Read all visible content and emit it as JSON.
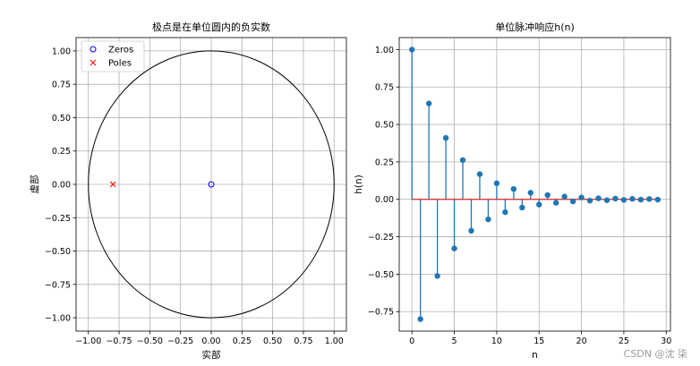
{
  "chart_data": [
    {
      "type": "scatter",
      "title": "极点是在单位圆内的负实数",
      "xlabel": "实部",
      "ylabel": "虚部",
      "xlim": [
        -1.1,
        1.1
      ],
      "ylim": [
        -1.1,
        1.1
      ],
      "xticks": [
        "−1.00",
        "−0.75",
        "−0.50",
        "−0.25",
        "0.00",
        "0.25",
        "0.50",
        "0.75",
        "1.00"
      ],
      "yticks": [
        "−1.00",
        "−0.75",
        "−0.50",
        "−0.25",
        "0.00",
        "0.25",
        "0.50",
        "0.75",
        "1.00"
      ],
      "grid": true,
      "legend_position": "top-left",
      "unit_circle": true,
      "series": [
        {
          "name": "Zeros",
          "marker": "circle",
          "color": "#0000ff",
          "points": [
            [
              0,
              0
            ]
          ]
        },
        {
          "name": "Poles",
          "marker": "x",
          "color": "#ff0000",
          "points": [
            [
              -0.8,
              0
            ]
          ]
        }
      ]
    },
    {
      "type": "stem",
      "title": "单位脉冲响应h(n)",
      "xlabel": "n",
      "ylabel": "h(n)",
      "xlim": [
        -1.5,
        30.5
      ],
      "ylim": [
        -0.88,
        1.08
      ],
      "xticks": [
        "0",
        "5",
        "10",
        "15",
        "20",
        "25",
        "30"
      ],
      "yticks": [
        "−0.75",
        "−0.50",
        "−0.25",
        "0.00",
        "0.25",
        "0.50",
        "0.75",
        "1.00"
      ],
      "grid": true,
      "color": "#1f77b4",
      "baseline_color": "#d62728",
      "x": [
        0,
        1,
        2,
        3,
        4,
        5,
        6,
        7,
        8,
        9,
        10,
        11,
        12,
        13,
        14,
        15,
        16,
        17,
        18,
        19,
        20,
        21,
        22,
        23,
        24,
        25,
        26,
        27,
        28,
        29
      ],
      "values": [
        1.0,
        -0.8,
        0.64,
        -0.512,
        0.41,
        -0.328,
        0.262,
        -0.21,
        0.168,
        -0.134,
        0.107,
        -0.086,
        0.069,
        -0.055,
        0.044,
        -0.035,
        0.028,
        -0.023,
        0.018,
        -0.014,
        0.012,
        -0.009,
        0.007,
        -0.006,
        0.005,
        -0.004,
        0.003,
        -0.002,
        0.002,
        -0.002
      ]
    }
  ],
  "watermark": "CSDN @沈 柒"
}
